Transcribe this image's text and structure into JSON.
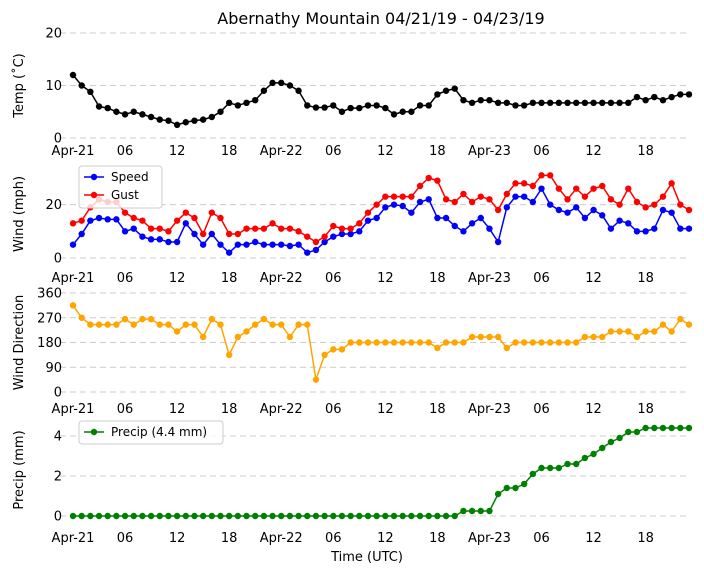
{
  "chart_data": {
    "title": "Abernathy Mountain 04/21/19 - 04/23/19",
    "xlabel": "Time (UTC)",
    "x_hours_from_start": "hourly, 72 points",
    "xticks": [
      "Apr-21",
      "06",
      "12",
      "18",
      "Apr-22",
      "06",
      "12",
      "18",
      "Apr-23",
      "06",
      "12",
      "18"
    ],
    "grid": "horizontal dashed",
    "panels": [
      {
        "type": "line",
        "ylabel": "Temp ($^\\circ$C)",
        "ylabel_text": "Temp (˚C)",
        "ylim": [
          0,
          20
        ],
        "yticks": [
          0,
          10,
          20
        ],
        "series": [
          {
            "color": "#000000",
            "values": [
              12,
              10,
              8.8,
              6,
              5.7,
              5,
              4.5,
              5,
              4.5,
              4,
              3.5,
              3.3,
              2.5,
              3,
              3.3,
              3.5,
              4,
              5,
              6.7,
              6.2,
              6.7,
              7.2,
              9,
              10.5,
              10.5,
              10,
              9,
              6.2,
              5.8,
              5.8,
              6.2,
              5,
              5.7,
              5.7,
              6.2,
              6.2,
              5.7,
              4.5,
              5,
              5,
              6.2,
              6.2,
              8.3,
              9,
              9.4,
              7.2,
              6.7,
              7.2,
              7.2,
              6.7,
              6.7,
              6.2,
              6.2,
              6.7,
              6.7,
              6.7,
              6.7,
              6.7,
              6.7,
              6.7,
              6.7,
              6.7,
              6.7,
              6.7,
              6.7,
              7.8,
              7.2,
              7.8,
              7.2,
              7.8,
              8.3,
              8.3
            ]
          }
        ]
      },
      {
        "type": "line",
        "ylabel_text": "Wind (mph)",
        "ylim": [
          0,
          33
        ],
        "yticks": [
          0,
          20
        ],
        "legend": "top-left",
        "series": [
          {
            "name": "Speed",
            "color": "#0000ff",
            "values": [
              5,
              9,
              14,
              15,
              14.5,
              14.5,
              10,
              11,
              8,
              7,
              7,
              6,
              6,
              13,
              9,
              5,
              9,
              5,
              2,
              5,
              5,
              6,
              5,
              5,
              5,
              4.5,
              5,
              2,
              3,
              6,
              8,
              9,
              9,
              10,
              14,
              15,
              19,
              20,
              19.5,
              17,
              21,
              22,
              15,
              15,
              12,
              10,
              13,
              15,
              11,
              6,
              19,
              23,
              23,
              21,
              26,
              20,
              18,
              17,
              19,
              15,
              18,
              16,
              11,
              14,
              13,
              10,
              10,
              11,
              18,
              17,
              11,
              11
            ]
          },
          {
            "name": "Gust",
            "color": "#ff0000",
            "values": [
              13,
              14,
              19,
              22,
              21,
              21,
              17,
              15,
              14,
              11,
              11,
              10,
              14,
              17,
              15,
              9,
              17,
              15,
              9,
              9,
              11,
              11,
              11,
              13,
              11,
              11,
              10,
              8,
              6,
              8,
              12,
              11,
              11,
              13,
              17,
              20,
              23,
              23,
              23,
              23,
              27,
              30,
              29,
              22,
              21,
              24,
              21,
              23,
              22,
              18,
              24,
              28,
              28,
              27,
              31,
              31,
              26,
              22,
              26,
              23,
              26,
              27,
              22,
              20,
              26,
              21,
              19,
              20,
              23,
              28,
              20,
              18
            ]
          }
        ]
      },
      {
        "type": "line",
        "ylabel_text": "Wind Direction",
        "ylim": [
          0,
          360
        ],
        "yticks": [
          0,
          90,
          180,
          270,
          360
        ],
        "series": [
          {
            "color": "#ffa500",
            "values": [
              315,
              270,
              245,
              245,
              245,
              245,
              265,
              245,
              265,
              265,
              245,
              245,
              220,
              245,
              245,
              200,
              265,
              245,
              135,
              200,
              220,
              245,
              265,
              245,
              245,
              200,
              245,
              245,
              45,
              135,
              155,
              155,
              180,
              180,
              180,
              180,
              180,
              180,
              180,
              180,
              180,
              180,
              160,
              180,
              180,
              180,
              200,
              200,
              200,
              200,
              160,
              180,
              180,
              180,
              180,
              180,
              180,
              180,
              180,
              200,
              200,
              200,
              220,
              220,
              220,
              200,
              220,
              220,
              245,
              220,
              265,
              245
            ]
          }
        ]
      },
      {
        "type": "line",
        "ylabel_text": "Precip (mm)",
        "ylim": [
          -0.2,
          4.8
        ],
        "yticks": [
          0,
          2,
          4
        ],
        "legend": "top-left",
        "series": [
          {
            "name": "Precip (4.4 mm)",
            "color": "#008000",
            "values": [
              0,
              0,
              0,
              0,
              0,
              0,
              0,
              0,
              0,
              0,
              0,
              0,
              0,
              0,
              0,
              0,
              0,
              0,
              0,
              0,
              0,
              0,
              0,
              0,
              0,
              0,
              0,
              0,
              0,
              0,
              0,
              0,
              0,
              0,
              0,
              0,
              0,
              0,
              0,
              0,
              0,
              0,
              0,
              0,
              0,
              0.25,
              0.25,
              0.25,
              0.25,
              1.1,
              1.4,
              1.4,
              1.6,
              2.1,
              2.4,
              2.4,
              2.4,
              2.6,
              2.6,
              2.9,
              3.1,
              3.4,
              3.7,
              3.9,
              4.2,
              4.2,
              4.4,
              4.4,
              4.4,
              4.4,
              4.4,
              4.4
            ]
          }
        ]
      }
    ]
  }
}
